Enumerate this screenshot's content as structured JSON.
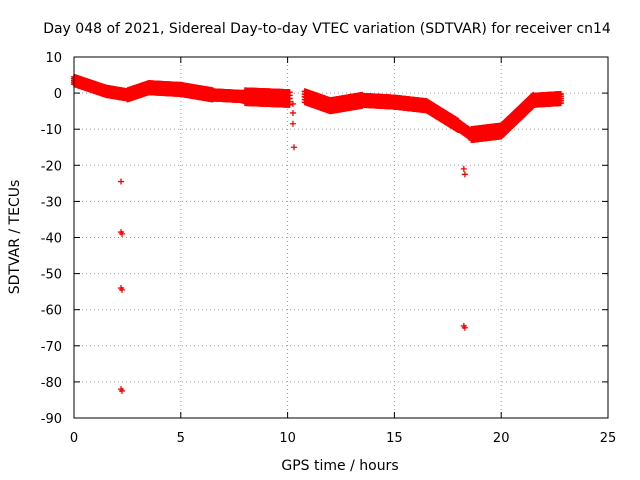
{
  "chart_data": {
    "type": "scatter",
    "title": "Day 048 of 2021, Sidereal Day-to-day VTEC variation (SDTVAR) for receiver cn14",
    "xlabel": "GPS time / hours",
    "ylabel": "SDTVAR / TECUs",
    "xlim": [
      0,
      25
    ],
    "ylim": [
      -90,
      10
    ],
    "xticks": [
      0,
      5,
      10,
      15,
      20,
      25
    ],
    "yticks": [
      10,
      0,
      -10,
      -20,
      -30,
      -40,
      -50,
      -60,
      -70,
      -80,
      -90
    ],
    "grid": true,
    "marker": "+",
    "series_color": "#ff0000",
    "series": [
      {
        "name": "SDTVAR",
        "bands": [
          {
            "x0": 0.0,
            "x1": 0.5,
            "y0": 3.5,
            "y1": 2.5,
            "spread": 2.0
          },
          {
            "x0": 0.5,
            "x1": 1.5,
            "y0": 2.5,
            "y1": 0.5,
            "spread": 2.0
          },
          {
            "x0": 1.5,
            "x1": 2.5,
            "y0": 0.5,
            "y1": -0.5,
            "spread": 2.0
          },
          {
            "x0": 2.5,
            "x1": 3.5,
            "y0": -0.5,
            "y1": 1.5,
            "spread": 2.5
          },
          {
            "x0": 3.5,
            "x1": 5.0,
            "y0": 1.5,
            "y1": 1.0,
            "spread": 2.5
          },
          {
            "x0": 5.0,
            "x1": 6.5,
            "y0": 1.0,
            "y1": -0.5,
            "spread": 2.5
          },
          {
            "x0": 6.5,
            "x1": 8.0,
            "y0": -0.5,
            "y1": -1.0,
            "spread": 2.0
          },
          {
            "x0": 8.0,
            "x1": 10.1,
            "y0": -1.0,
            "y1": -1.5,
            "spread": 3.5
          },
          {
            "x0": 10.8,
            "x1": 12.0,
            "y0": -1.0,
            "y1": -3.5,
            "spread": 3.0
          },
          {
            "x0": 12.0,
            "x1": 13.5,
            "y0": -3.5,
            "y1": -2.0,
            "spread": 3.0
          },
          {
            "x0": 13.5,
            "x1": 15.0,
            "y0": -2.0,
            "y1": -2.5,
            "spread": 2.5
          },
          {
            "x0": 15.0,
            "x1": 16.5,
            "y0": -2.5,
            "y1": -3.5,
            "spread": 2.5
          },
          {
            "x0": 16.5,
            "x1": 18.0,
            "y0": -3.5,
            "y1": -9.0,
            "spread": 2.5
          },
          {
            "x0": 18.0,
            "x1": 18.6,
            "y0": -9.0,
            "y1": -11.5,
            "spread": 2.0
          },
          {
            "x0": 18.6,
            "x1": 20.0,
            "y0": -11.5,
            "y1": -10.5,
            "spread": 3.0
          },
          {
            "x0": 20.0,
            "x1": 21.5,
            "y0": -10.5,
            "y1": -2.0,
            "spread": 3.0
          },
          {
            "x0": 21.5,
            "x1": 22.8,
            "y0": -2.0,
            "y1": -1.5,
            "spread": 2.5
          }
        ],
        "outliers": [
          {
            "x": 2.2,
            "y": -24.5
          },
          {
            "x": 2.2,
            "y": -38.5
          },
          {
            "x": 2.25,
            "y": -39.0
          },
          {
            "x": 2.2,
            "y": -54.0
          },
          {
            "x": 2.25,
            "y": -54.5
          },
          {
            "x": 2.2,
            "y": -82.0
          },
          {
            "x": 2.25,
            "y": -82.5
          },
          {
            "x": 10.25,
            "y": -3.0
          },
          {
            "x": 10.25,
            "y": -5.5
          },
          {
            "x": 10.25,
            "y": -8.5
          },
          {
            "x": 10.3,
            "y": -15.0
          },
          {
            "x": 18.25,
            "y": -21.0
          },
          {
            "x": 18.3,
            "y": -22.5
          },
          {
            "x": 18.25,
            "y": -64.5
          },
          {
            "x": 18.3,
            "y": -65.0
          }
        ]
      }
    ]
  }
}
